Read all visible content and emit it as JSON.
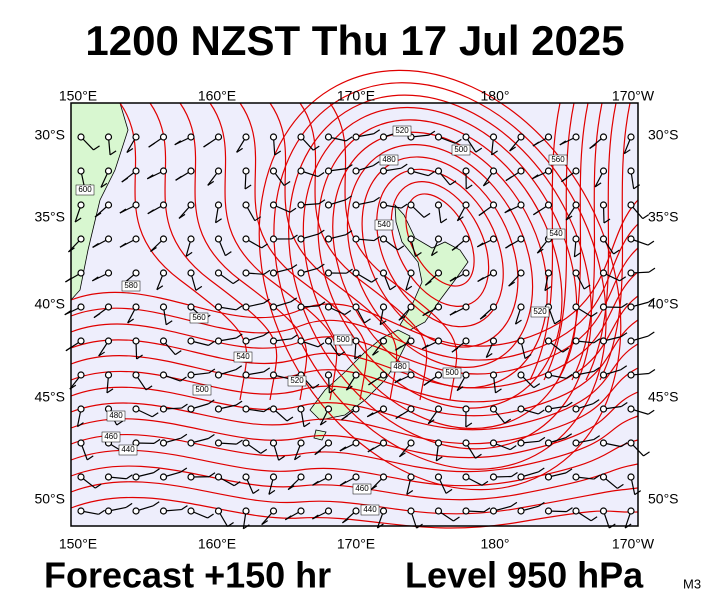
{
  "header": {
    "title": "1200 NZST Thu 17 Jul 2025"
  },
  "map": {
    "lon_labels": [
      "150°E",
      "160°E",
      "170°E",
      "180°",
      "170°W"
    ],
    "lat_labels": [
      "30°S",
      "35°S",
      "40°S",
      "45°S",
      "50°S"
    ],
    "contour_labels": [
      "600",
      "580",
      "560",
      "540",
      "520",
      "500",
      "480",
      "460",
      "440",
      "520",
      "500",
      "480",
      "540",
      "500",
      "480",
      "460",
      "440",
      "560",
      "540",
      "520",
      "500"
    ]
  },
  "footer": {
    "forecast": "Forecast +150 hr",
    "level": "Level 950 hPa",
    "model": "M3"
  }
}
